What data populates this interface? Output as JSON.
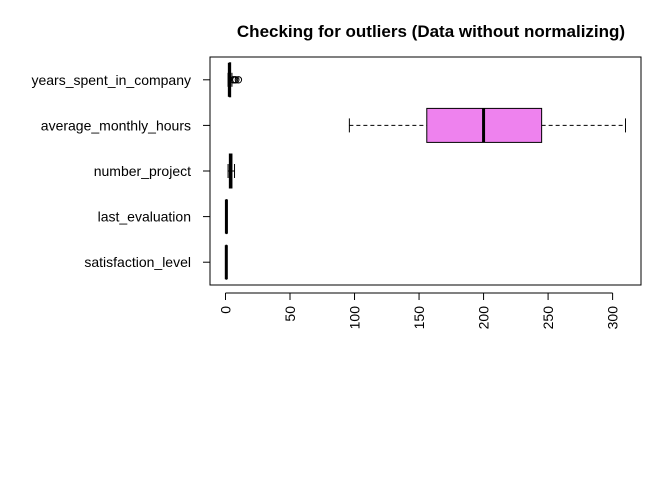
{
  "chart_data": {
    "type": "boxplot",
    "orientation": "horizontal",
    "title": "Checking for outliers (Data without normalizing)",
    "xlabel": "",
    "ylabel": "",
    "xlim": [
      -12,
      322
    ],
    "x_ticks": [
      "0",
      "50",
      "100",
      "150",
      "200",
      "250",
      "300"
    ],
    "x_tick_values": [
      0,
      50,
      100,
      150,
      200,
      250,
      300
    ],
    "x_tick_label_rotation": "vertical",
    "box_color": "#EE82EE",
    "categories": [
      "satisfaction_level",
      "last_evaluation",
      "number_project",
      "average_monthly_hours",
      "years_spent_in_company"
    ],
    "boxes": [
      {
        "category": "satisfaction_level",
        "whisker_low": 0.09,
        "q1": 0.44,
        "median": 0.64,
        "q3": 0.82,
        "whisker_high": 1.0,
        "outliers": []
      },
      {
        "category": "last_evaluation",
        "whisker_low": 0.36,
        "q1": 0.56,
        "median": 0.72,
        "q3": 0.87,
        "whisker_high": 1.0,
        "outliers": []
      },
      {
        "category": "number_project",
        "whisker_low": 2,
        "q1": 3,
        "median": 4,
        "q3": 5,
        "whisker_high": 7,
        "outliers": []
      },
      {
        "category": "average_monthly_hours",
        "whisker_low": 96,
        "q1": 156,
        "median": 200,
        "q3": 245,
        "whisker_high": 310,
        "outliers": []
      },
      {
        "category": "years_spent_in_company",
        "whisker_low": 2,
        "q1": 3,
        "median": 3,
        "q3": 4,
        "whisker_high": 5,
        "outliers": [
          6,
          7,
          8,
          10
        ]
      }
    ]
  }
}
